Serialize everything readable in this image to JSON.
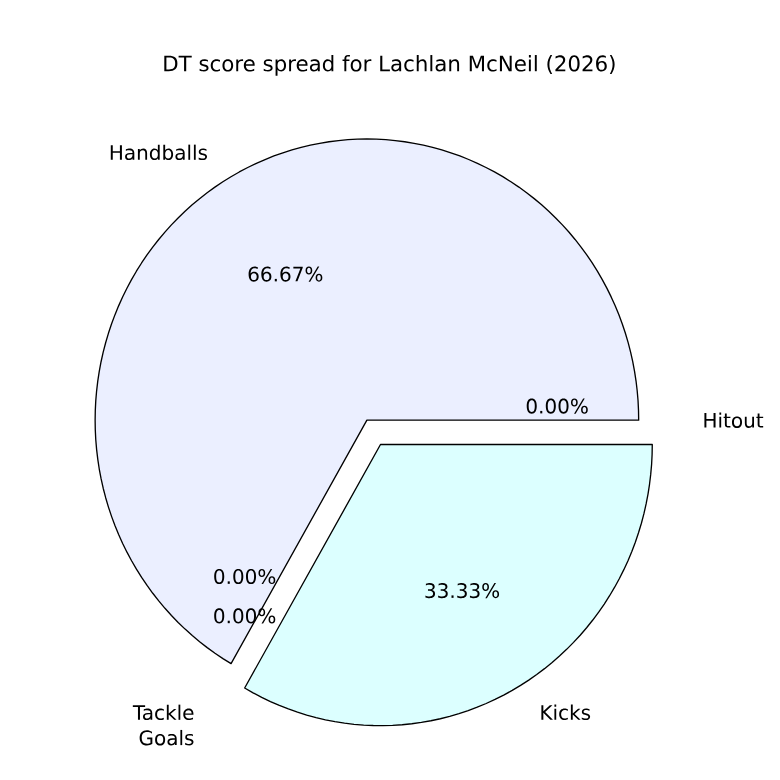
{
  "chart_data": {
    "type": "pie",
    "title": "DT score spread for Lachlan McNeil (2026)",
    "categories": [
      "Handballs",
      "Tackle",
      "Goals",
      "Kicks",
      "Hitout"
    ],
    "values": [
      66.67,
      0,
      0,
      33.33,
      0
    ],
    "value_labels": [
      "66.67%",
      "0.00%",
      "0.00%",
      "33.33%",
      "0.00%"
    ],
    "colors": [
      "#ebefff",
      "#e8e8ff",
      "#ffe8e8",
      "#dcffff",
      "#e8ffe8"
    ]
  }
}
